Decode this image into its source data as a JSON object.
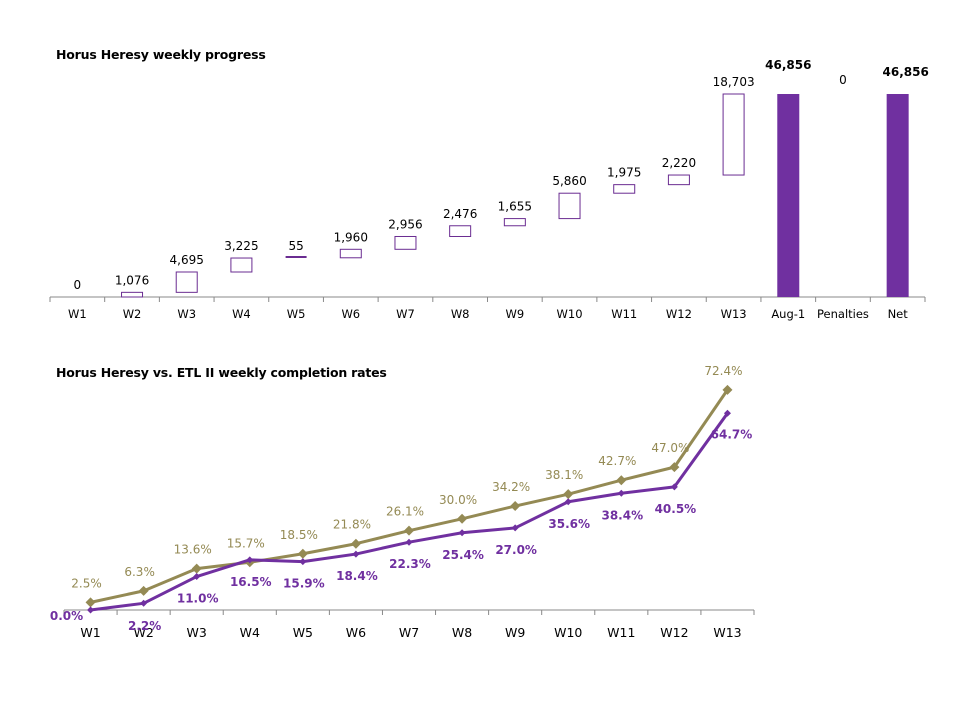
{
  "chart_data": [
    {
      "type": "bar",
      "subtype": "waterfall",
      "title": "Horus Heresy weekly progress",
      "categories": [
        "W1",
        "W2",
        "W3",
        "W4",
        "W5",
        "W6",
        "W7",
        "W8",
        "W9",
        "W10",
        "W11",
        "W12",
        "W13",
        "Aug-1",
        "Penalties",
        "Net"
      ],
      "values": [
        0,
        1076,
        4695,
        3225,
        55,
        1960,
        2956,
        2476,
        1655,
        5860,
        1975,
        2220,
        18703,
        46856,
        0,
        46856
      ],
      "labels": [
        "0",
        "1,076",
        "4,695",
        "3,225",
        "55",
        "1,960",
        "2,956",
        "2,476",
        "1,655",
        "5,860",
        "1,975",
        "2,220",
        "18,703",
        "46,856",
        "0",
        "46,856"
      ],
      "kinds": [
        "step",
        "step",
        "step",
        "step",
        "step",
        "step",
        "step",
        "step",
        "step",
        "step",
        "step",
        "step",
        "step",
        "total",
        "step",
        "total"
      ],
      "xlabel": "",
      "ylabel": "",
      "ylim": [
        0,
        46856
      ],
      "grid": false,
      "colors": {
        "outline": "#6a2c91",
        "total": "#7030a0",
        "axis": "#898989"
      }
    },
    {
      "type": "line",
      "title": "Horus Heresy vs. ETL II weekly completion rates",
      "categories": [
        "W1",
        "W2",
        "W3",
        "W4",
        "W5",
        "W6",
        "W7",
        "W8",
        "W9",
        "W10",
        "W11",
        "W12",
        "W13"
      ],
      "series": [
        {
          "name": "ETL II",
          "color": "#948a54",
          "values": [
            2.5,
            6.3,
            13.6,
            15.7,
            18.5,
            21.8,
            26.1,
            30.0,
            34.2,
            38.1,
            42.7,
            47.0,
            72.4
          ],
          "labels": [
            "2.5%",
            "6.3%",
            "13.6%",
            "15.7%",
            "18.5%",
            "21.8%",
            "26.1%",
            "30.0%",
            "34.2%",
            "38.1%",
            "42.7%",
            "47.0%",
            "72.4%"
          ]
        },
        {
          "name": "Horus Heresy",
          "color": "#7030a0",
          "values": [
            0.0,
            2.2,
            11.0,
            16.5,
            15.9,
            18.4,
            22.3,
            25.4,
            27.0,
            35.6,
            38.4,
            40.5,
            64.7
          ],
          "labels": [
            "0.0%",
            "2.2%",
            "11.0%",
            "16.5%",
            "15.9%",
            "18.4%",
            "22.3%",
            "25.4%",
            "27.0%",
            "35.6%",
            "38.4%",
            "40.5%",
            "64.7%"
          ]
        }
      ],
      "xlabel": "",
      "ylabel": "",
      "ylim": [
        0,
        100
      ],
      "grid": false
    }
  ]
}
